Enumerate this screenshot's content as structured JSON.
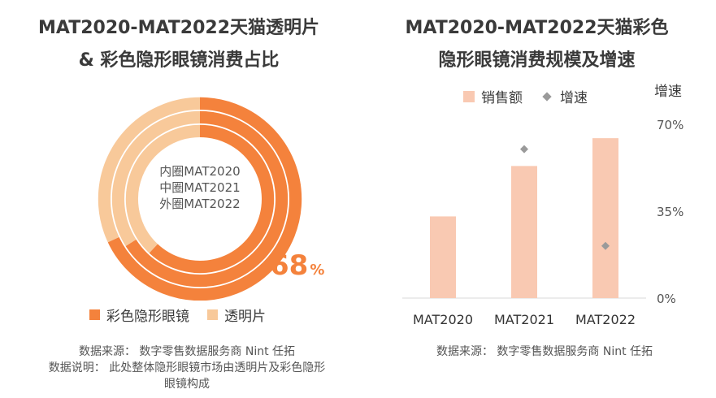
{
  "left": {
    "title_line1": "MAT2020-MAT2022天猫透明片",
    "title_line2": "& 彩色隐形眼镜消费占比",
    "center_lines": [
      "内圈MAT2020",
      "中圈MAT2021",
      "外圈MAT2022"
    ],
    "highlight_value": "68",
    "highlight_unit": "%",
    "legend": [
      "彩色隐形眼镜",
      "透明片"
    ],
    "source_text": "数据来源：  数字零售数据服务商 Nint 任拓",
    "note_line1": "数据说明：  此处整体隐形眼镜市场由透明片及彩色隐形",
    "note_line2": "眼镜构成"
  },
  "right": {
    "title_line1": "MAT2020-MAT2022天猫彩色",
    "title_line2": "隐形眼镜消费规模及增速",
    "legend": [
      "销售额",
      "增速"
    ],
    "axis_right_label": "增速",
    "source_text": "数据来源：  数字零售数据服务商 Nint 任拓"
  },
  "colors": {
    "color_lens": "#F4823C",
    "clear_lens": "#F8C99A",
    "bar": "#F9C9B2",
    "growth_marker": "#9a9a9a"
  },
  "chart_data": [
    {
      "type": "pie",
      "title": "MAT2020-MAT2022天猫透明片 & 彩色隐形眼镜消费占比",
      "categories": [
        "彩色隐形眼镜",
        "透明片"
      ],
      "rings": [
        {
          "name": "MAT2020",
          "values": [
            0.62,
            0.38
          ]
        },
        {
          "name": "MAT2021",
          "values": [
            0.66,
            0.34
          ]
        },
        {
          "name": "MAT2022",
          "values": [
            0.68,
            0.32
          ]
        }
      ],
      "labels": [
        "68%"
      ]
    },
    {
      "type": "bar",
      "title": "MAT2020-MAT2022天猫彩色隐形眼镜消费规模及增速",
      "categories": [
        "MAT2020",
        "MAT2021",
        "MAT2022"
      ],
      "series": [
        {
          "name": "销售额",
          "type": "bar",
          "values": [
            0.47,
            0.76,
            0.92
          ]
        },
        {
          "name": "增速",
          "type": "scatter",
          "axis": "right",
          "values": [
            null,
            0.6,
            0.21
          ]
        }
      ],
      "y2label": "增速",
      "y2lim": [
        0,
        0.7
      ],
      "y2ticks": [
        "0%",
        "35%",
        "70%"
      ]
    }
  ]
}
